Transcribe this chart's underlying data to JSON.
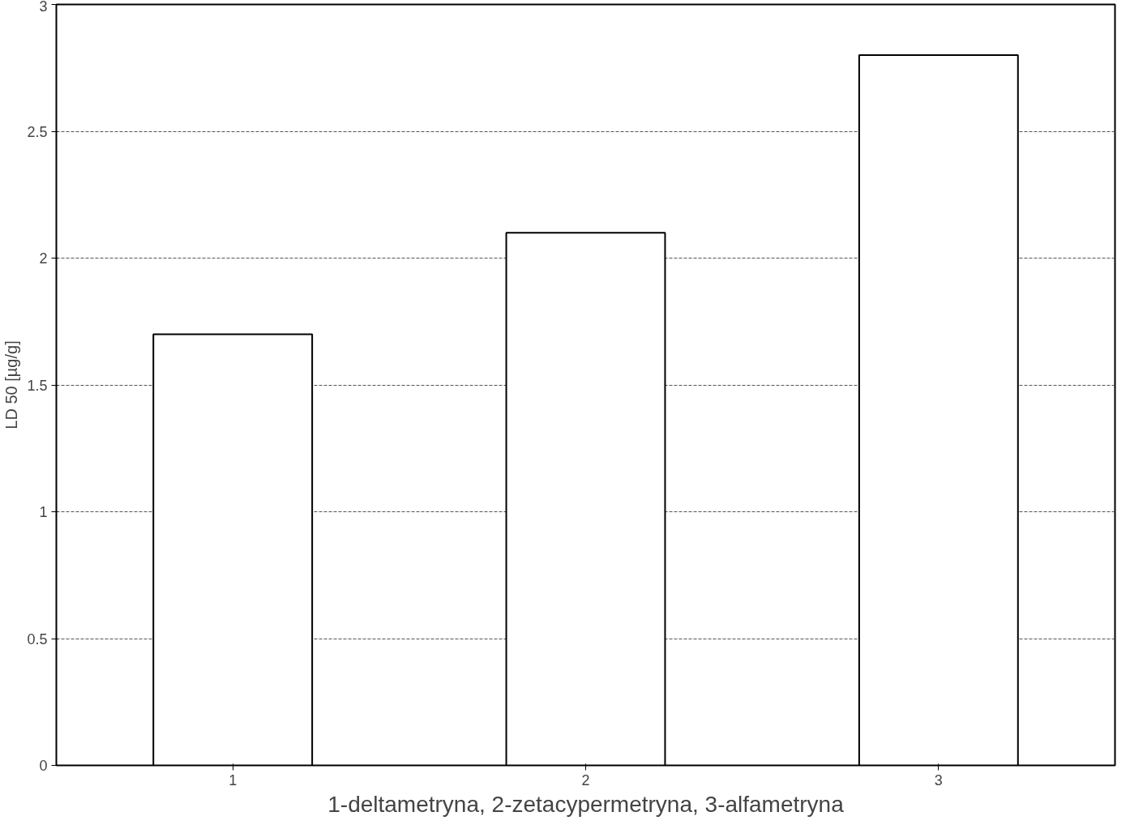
{
  "chart_data": {
    "type": "bar",
    "xlabel": "1-deltametryna, 2-zetacypermetryna, 3-alfametryna",
    "ylabel": "LD 50 [µg/g]",
    "categories": [
      "1",
      "2",
      "3"
    ],
    "values": [
      1.7,
      2.1,
      2.8
    ],
    "color": "#ffffff",
    "ylim": [
      0,
      3
    ],
    "yticks": [
      0,
      0.5,
      1,
      1.5,
      2,
      2.5,
      3
    ],
    "grid": "y"
  }
}
